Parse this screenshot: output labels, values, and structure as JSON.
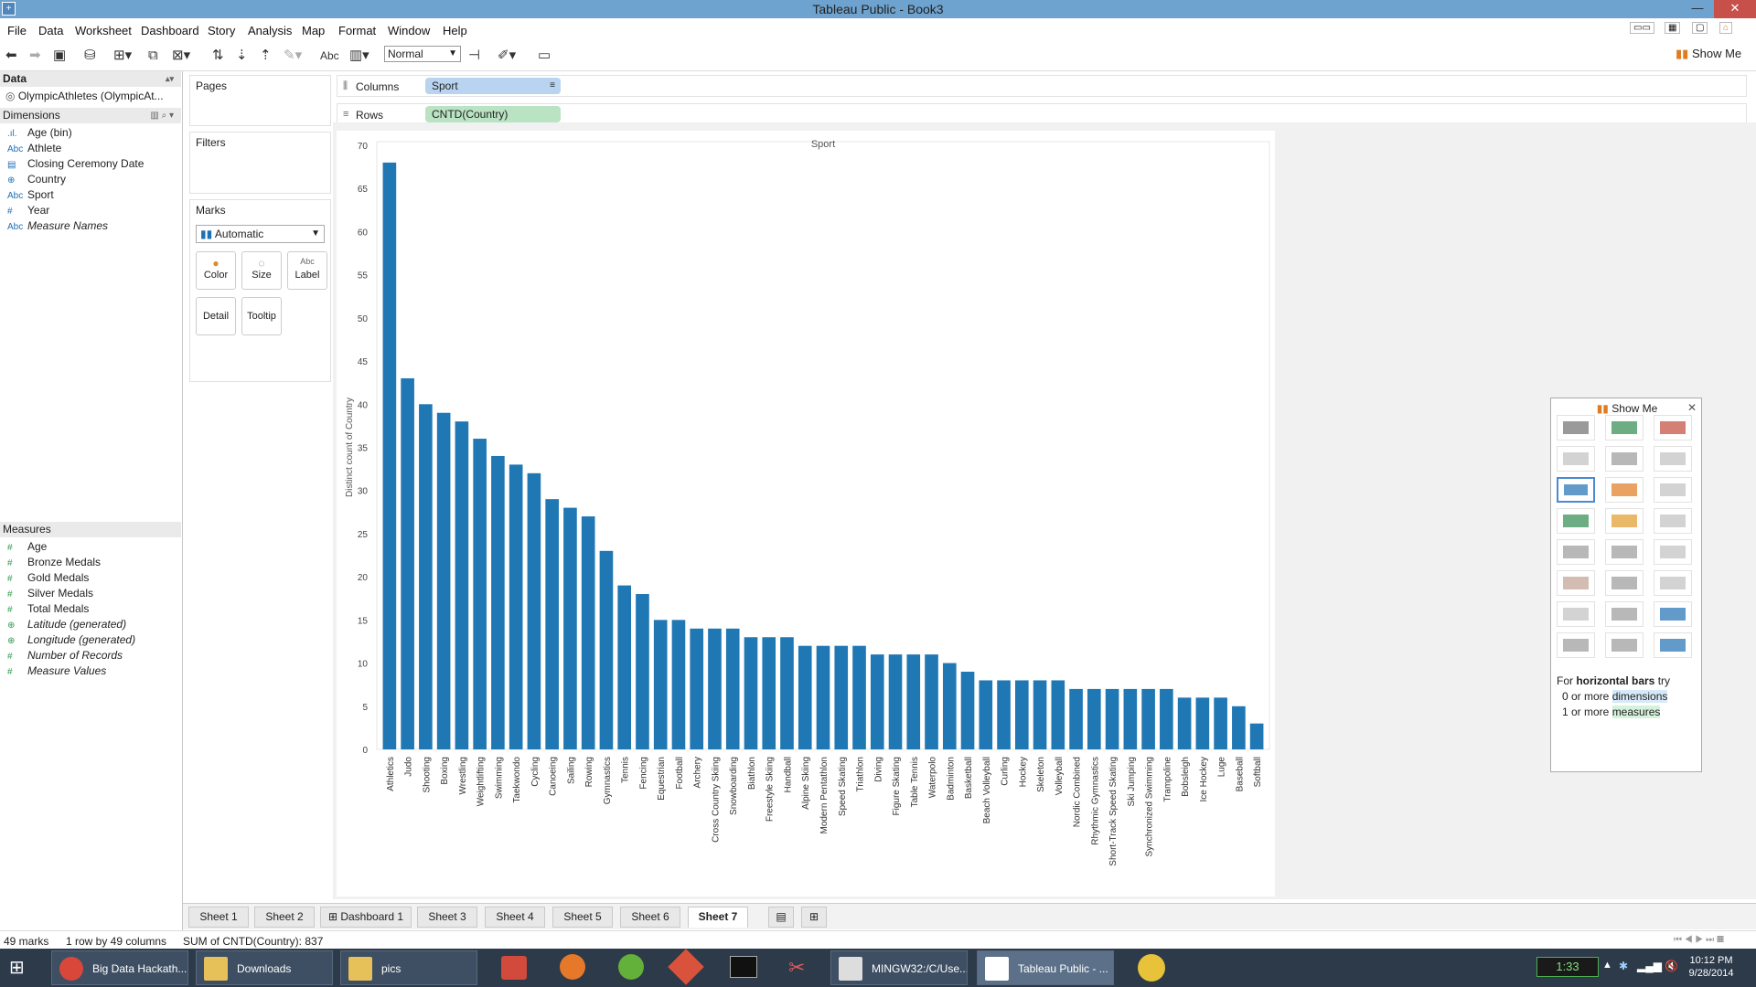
{
  "window": {
    "title": "Tableau Public - Book3",
    "app_icon": "app-icon"
  },
  "menu": [
    "File",
    "Data",
    "Worksheet",
    "Dashboard",
    "Story",
    "Analysis",
    "Map",
    "Format",
    "Window",
    "Help"
  ],
  "toolbar": {
    "fit_value": "Normal",
    "show_me_label": "Show Me",
    "abc_label": "Abc"
  },
  "data_pane": {
    "header": "Data",
    "data_source": "OlympicAthletes (OlympicAt...",
    "dimensions_header": "Dimensions",
    "dimensions": [
      {
        "icon": "bin-icon",
        "glyph": ".ıl.",
        "name": "Age (bin)",
        "italic": false
      },
      {
        "icon": "abc-icon",
        "glyph": "Abc",
        "name": "Athlete",
        "italic": false
      },
      {
        "icon": "date-icon",
        "glyph": "▤",
        "name": "Closing Ceremony Date",
        "italic": false
      },
      {
        "icon": "globe-icon",
        "glyph": "⊕",
        "name": "Country",
        "italic": false
      },
      {
        "icon": "abc-icon",
        "glyph": "Abc",
        "name": "Sport",
        "italic": false
      },
      {
        "icon": "number-icon",
        "glyph": "#",
        "name": "Year",
        "italic": false
      },
      {
        "icon": "abc-icon",
        "glyph": "Abc",
        "name": "Measure Names",
        "italic": true
      }
    ],
    "measures_header": "Measures",
    "measures": [
      {
        "icon": "number-icon",
        "glyph": "#",
        "name": "Age",
        "italic": false
      },
      {
        "icon": "number-icon",
        "glyph": "#",
        "name": "Bronze Medals",
        "italic": false
      },
      {
        "icon": "number-icon",
        "glyph": "#",
        "name": "Gold Medals",
        "italic": false
      },
      {
        "icon": "number-icon",
        "glyph": "#",
        "name": "Silver Medals",
        "italic": false
      },
      {
        "icon": "number-icon",
        "glyph": "#",
        "name": "Total Medals",
        "italic": false
      },
      {
        "icon": "globe-icon",
        "glyph": "⊕",
        "name": "Latitude (generated)",
        "italic": true
      },
      {
        "icon": "globe-icon",
        "glyph": "⊕",
        "name": "Longitude (generated)",
        "italic": true
      },
      {
        "icon": "number-icon",
        "glyph": "#",
        "name": "Number of Records",
        "italic": true
      },
      {
        "icon": "number-icon",
        "glyph": "#",
        "name": "Measure Values",
        "italic": true
      }
    ]
  },
  "cards": {
    "pages": "Pages",
    "filters": "Filters",
    "marks": "Marks",
    "mark_type": "Automatic",
    "mark_buttons": [
      "Color",
      "Size",
      "Label",
      "Detail",
      "Tooltip"
    ]
  },
  "shelves": {
    "columns_label": "Columns",
    "columns_pill": "Sport",
    "rows_label": "Rows",
    "rows_pill": "CNTD(Country)"
  },
  "chart_data": {
    "type": "bar",
    "title": "Sport",
    "ylabel": "Distinct count of Country",
    "xlabel": "",
    "ylim": [
      0,
      70
    ],
    "yticks": [
      0,
      5,
      10,
      15,
      20,
      25,
      30,
      35,
      40,
      45,
      50,
      55,
      60,
      65,
      70
    ],
    "bar_color": "#1f77b4",
    "categories": [
      "Athletics",
      "Judo",
      "Shooting",
      "Boxing",
      "Wrestling",
      "Weightlifting",
      "Swimming",
      "Taekwondo",
      "Cycling",
      "Canoeing",
      "Sailing",
      "Rowing",
      "Gymnastics",
      "Tennis",
      "Fencing",
      "Equestrian",
      "Football",
      "Archery",
      "Cross Country Skiing",
      "Snowboarding",
      "Biathlon",
      "Freestyle Skiing",
      "Handball",
      "Alpine Skiing",
      "Modern Pentathlon",
      "Speed Skating",
      "Triathlon",
      "Diving",
      "Figure Skating",
      "Table Tennis",
      "Waterpolo",
      "Badminton",
      "Basketball",
      "Beach Volleyball",
      "Curling",
      "Hockey",
      "Skeleton",
      "Volleyball",
      "Nordic Combined",
      "Rhythmic Gymnastics",
      "Short-Track Speed Skating",
      "Ski Jumping",
      "Synchronized Swimming",
      "Trampoline",
      "Bobsleigh",
      "Ice Hockey",
      "Luge",
      "Baseball",
      "Softball"
    ],
    "values": [
      68,
      43,
      40,
      39,
      38,
      36,
      34,
      33,
      32,
      29,
      28,
      27,
      23,
      19,
      18,
      15,
      15,
      14,
      14,
      14,
      13,
      13,
      13,
      12,
      12,
      12,
      12,
      11,
      11,
      11,
      11,
      10,
      9,
      8,
      8,
      8,
      8,
      8,
      7,
      7,
      7,
      7,
      7,
      7,
      6,
      6,
      6,
      5,
      3
    ]
  },
  "show_me": {
    "title": "Show Me",
    "hint_prefix": "For ",
    "hint_bold": "horizontal bars",
    "hint_suffix": " try",
    "req1_prefix": "0 or more ",
    "req1_word": "dimensions",
    "req2_prefix": "1 or more ",
    "req2_word": "measures"
  },
  "tabs": [
    "Sheet 1",
    "Sheet 2",
    "Dashboard 1",
    "Sheet 3",
    "Sheet 4",
    "Sheet 5",
    "Sheet 6",
    "Sheet 7"
  ],
  "active_tab": "Sheet 7",
  "status": {
    "marks": "49 marks",
    "dims": "1 row by 49 columns",
    "sum": "SUM of CNTD(Country): 837"
  },
  "taskbar": {
    "items": [
      "Big Data Hackath...",
      "Downloads",
      "pics",
      "MINGW32:/C/Use...",
      "Tableau Public - ..."
    ],
    "clock_widget": "1:33",
    "time": "10:12 PM",
    "date": "9/28/2014"
  }
}
